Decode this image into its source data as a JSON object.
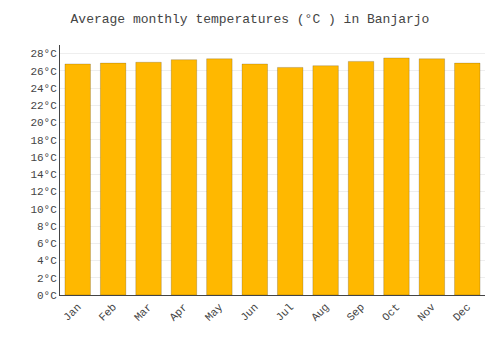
{
  "chart_data": {
    "type": "bar",
    "title": "Average monthly temperatures (°C ) in Banjarjo",
    "categories": [
      "Jan",
      "Feb",
      "Mar",
      "Apr",
      "May",
      "Jun",
      "Jul",
      "Aug",
      "Sep",
      "Oct",
      "Nov",
      "Dec"
    ],
    "values": [
      26.8,
      26.9,
      27.0,
      27.3,
      27.4,
      26.8,
      26.4,
      26.6,
      27.1,
      27.5,
      27.4,
      26.9
    ],
    "color": "#FFB800",
    "ylim": [
      0,
      29
    ],
    "yticks": [
      {
        "value": 0,
        "label": "0°C"
      },
      {
        "value": 2,
        "label": "2°C"
      },
      {
        "value": 4,
        "label": "4°C"
      },
      {
        "value": 6,
        "label": "6°C"
      },
      {
        "value": 8,
        "label": "8°C"
      },
      {
        "value": 10,
        "label": "10°C"
      },
      {
        "value": 12,
        "label": "12°C"
      },
      {
        "value": 14,
        "label": "14°C"
      },
      {
        "value": 16,
        "label": "16°C"
      },
      {
        "value": 18,
        "label": "18°C"
      },
      {
        "value": 20,
        "label": "20°C"
      },
      {
        "value": 22,
        "label": "22°C"
      },
      {
        "value": 24,
        "label": "24°C"
      },
      {
        "value": 26,
        "label": "26°C"
      },
      {
        "value": 28,
        "label": "28°C"
      }
    ],
    "grid": true
  }
}
